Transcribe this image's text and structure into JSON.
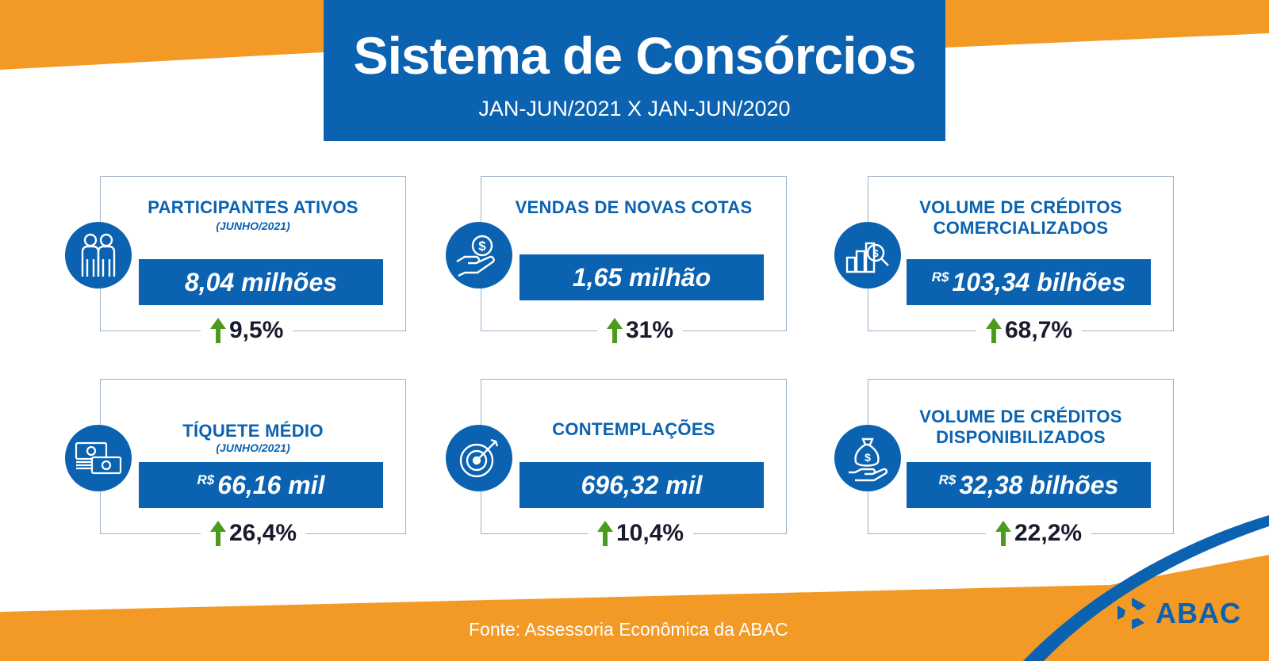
{
  "header": {
    "title": "Sistema de Consórcios",
    "subtitle": "JAN-JUN/2021 X JAN-JUN/2020"
  },
  "cards": [
    {
      "title": "PARTICIPANTES ATIVOS",
      "subtitle": "(JUNHO/2021)",
      "value": "8,04 milhões",
      "change": "9,5%",
      "icon": "people-icon"
    },
    {
      "title": "VENDAS DE NOVAS COTAS",
      "value": "1,65 milhão",
      "change": "31%",
      "icon": "hand-coin-icon"
    },
    {
      "title_line1": "VOLUME DE CRÉDITOS",
      "title_line2": "COMERCIALIZADOS",
      "currency": "R$",
      "value": "103,34 bilhões",
      "change": "68,7%",
      "icon": "chart-magnifier-icon"
    },
    {
      "title": "TÍQUETE MÉDIO",
      "subtitle": "(JUNHO/2021)",
      "currency": "R$",
      "value": "66,16 mil",
      "change": "26,4%",
      "icon": "cash-stack-icon"
    },
    {
      "title": "CONTEMPLAÇÕES",
      "value": "696,32 mil",
      "change": "10,4%",
      "icon": "target-icon"
    },
    {
      "title_line1": "VOLUME DE CRÉDITOS",
      "title_line2": "DISPONIBILIZADOS",
      "currency": "R$",
      "value": "32,38 bilhões",
      "change": "22,2%",
      "icon": "money-bag-hand-icon"
    }
  ],
  "footer": {
    "source": "Fonte: Assessoria Econômica da ABAC",
    "logo_text": "ABAC"
  },
  "colors": {
    "blue": "#0a62b0",
    "orange": "#f39a26",
    "green": "#4c9a1e"
  }
}
